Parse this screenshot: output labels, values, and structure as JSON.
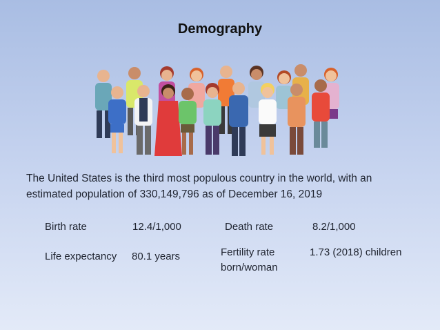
{
  "slide": {
    "title": "Demography",
    "illustration_icon": "people-crowd-icon",
    "intro_line1": "The United States is the third most populous country in the world, with an",
    "intro_line2": "estimated population of 330,149,796 as of December 16, 2019"
  },
  "stats": {
    "birth_rate": {
      "label": "Birth rate",
      "value": "12.4/1,000"
    },
    "death_rate": {
      "label": "Death rate",
      "value": "8.2/1,000"
    },
    "life_expectancy": {
      "label": "Life expectancy",
      "value": "80.1 years"
    },
    "fertility_rate": {
      "label": "Fertility rate",
      "value": "1.73 (2018) children",
      "value_cont": "born/woman"
    }
  }
}
